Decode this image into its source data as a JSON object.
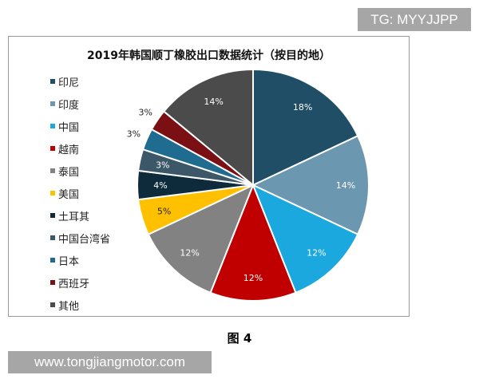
{
  "watermark_tag": "TG: MYYJJPP",
  "caption": "图 4",
  "footer": "www.tongjiangmotor.com",
  "chart_data": {
    "type": "pie",
    "title": "2019年韩国顺丁橡胶出口数据统计（按目的地）",
    "legend_placement": "left",
    "start": "12 o'clock, clockwise",
    "categories": [
      "印尼",
      "印度",
      "中国",
      "越南",
      "泰国",
      "美国",
      "土耳其",
      "中国台湾省",
      "日本",
      "西班牙",
      "其他"
    ],
    "values": [
      18,
      14,
      12,
      12,
      12,
      5,
      4,
      3,
      3,
      3,
      14
    ],
    "labels": [
      "18%",
      "14%",
      "12%",
      "12%",
      "12%",
      "5%",
      "4%",
      "3%",
      "3%",
      "3%",
      "14%"
    ],
    "colors": [
      "#1f4e66",
      "#6b98b0",
      "#1ba8de",
      "#c00000",
      "#828282",
      "#ffc000",
      "#0e2b3b",
      "#3c5768",
      "#1f6c90",
      "#7a1014",
      "#4b4b4b"
    ]
  }
}
